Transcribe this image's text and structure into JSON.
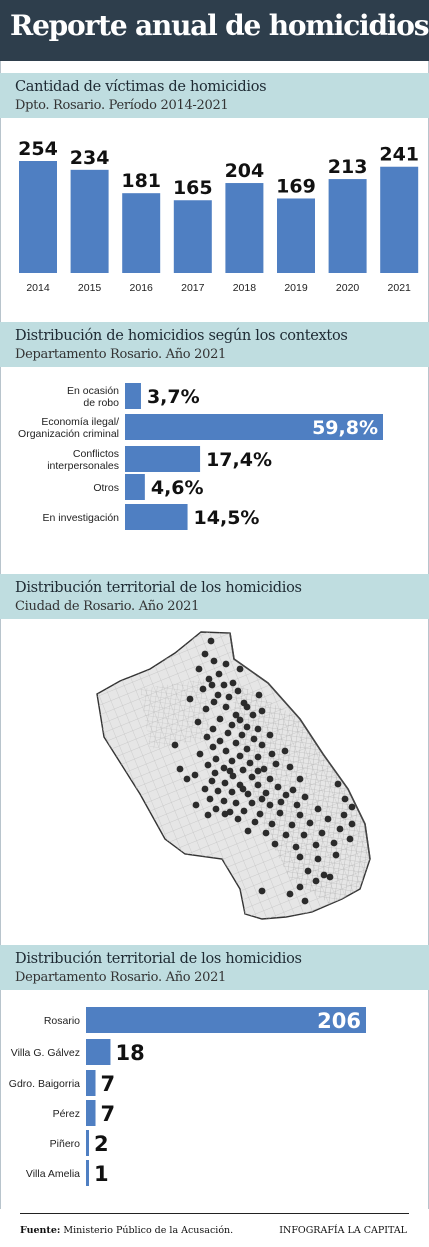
{
  "title": "Reporte anual de homicidios",
  "colors": {
    "header_bg": "#2e3e4c",
    "band_bg": "#bfdde0",
    "bar": "#4f7fc2",
    "dot": "#2b2b2b"
  },
  "section1": {
    "title": "Cantidad de víctimas de homicidios",
    "subtitle": "Dpto. Rosario. Período 2014-2021"
  },
  "section2": {
    "title": "Distribución de homicidios según los contextos",
    "subtitle": "Departamento Rosario. Año 2021"
  },
  "section3": {
    "title": "Distribución territorial de los homicidios",
    "subtitle": "Ciudad de Rosario. Año 2021"
  },
  "section4": {
    "title": "Distribución territorial de los homicidios",
    "subtitle": "Departamento Rosario. Año 2021"
  },
  "footer": {
    "source_label": "Fuente:",
    "source_text": " Ministerio Público de la Acusación.",
    "credit": "INFOGRAFÍA LA CAPITAL"
  },
  "chart_data": [
    {
      "type": "bar",
      "orientation": "vertical",
      "categories": [
        "2014",
        "2015",
        "2016",
        "2017",
        "2018",
        "2019",
        "2020",
        "2021"
      ],
      "values": [
        254,
        234,
        181,
        165,
        204,
        169,
        213,
        241
      ],
      "data_labels": [
        "254",
        "234",
        "181",
        "165",
        "204",
        "169",
        "213",
        "241"
      ]
    },
    {
      "type": "bar",
      "orientation": "horizontal",
      "categories": [
        [
          "En ocasión",
          "de robo"
        ],
        [
          "Economía ilegal/",
          "Organización criminal"
        ],
        [
          "Conflictos",
          "interpersonales"
        ],
        [
          "Otros"
        ],
        [
          "En investigación"
        ]
      ],
      "values": [
        3.7,
        59.8,
        17.4,
        4.6,
        14.5
      ],
      "data_labels": [
        "3,7%",
        "59,8%",
        "17,4%",
        "4,6%",
        "14,5%"
      ]
    },
    {
      "type": "scatter",
      "description_kind": "dot-map",
      "point_count": 206
    },
    {
      "type": "bar",
      "orientation": "horizontal",
      "categories": [
        "Rosario",
        "Villa G. Gálvez",
        "Gdro. Baigorria",
        "Pérez",
        "Piñero",
        "Villa Amelia"
      ],
      "values": [
        206,
        18,
        7,
        7,
        2,
        1
      ],
      "data_labels": [
        "206",
        "18",
        "7",
        "7",
        "2",
        "1"
      ]
    }
  ]
}
